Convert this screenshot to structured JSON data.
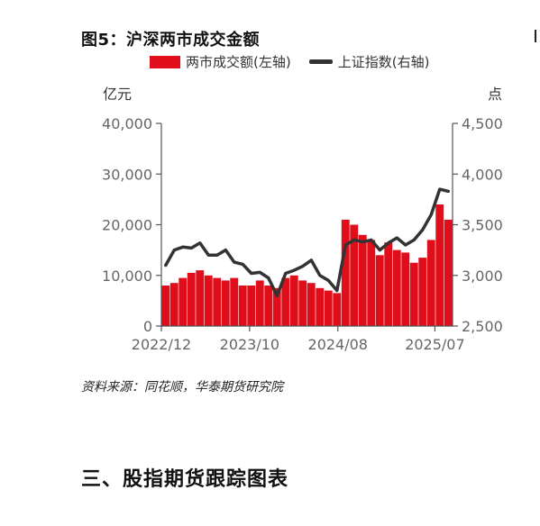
{
  "figure_title": "图5：沪深两市成交金额",
  "source_note": "资料来源：同花顺，华泰期货研究院",
  "section_heading": "三、股指期货跟踪图表",
  "legend": {
    "bar_label": "两市成交额(左轴)",
    "line_label": "上证指数(右轴)"
  },
  "units": {
    "left": "亿元",
    "right": "点"
  },
  "colors": {
    "bars": "#e00d1a",
    "line": "#333333",
    "axis": "#555555"
  },
  "chart_data": {
    "type": "bar",
    "x_ticks": [
      "2022/12",
      "2023/10",
      "2024/08",
      "2025/07"
    ],
    "x_range": [
      "2022-12",
      "2025-09"
    ],
    "y_left": {
      "label": "亿元",
      "min": 0,
      "max": 40000,
      "ticks": [
        "0",
        "10,000",
        "20,000",
        "30,000",
        "40,000"
      ]
    },
    "y_right": {
      "label": "点",
      "min": 2500,
      "max": 4500,
      "ticks": [
        "2,500",
        "3,000",
        "3,500",
        "4,000",
        "4,500"
      ]
    },
    "series": [
      {
        "name": "两市成交额(左轴)",
        "type": "bar",
        "axis": "left",
        "x": [
          "2022-12",
          "2023-01",
          "2023-02",
          "2023-03",
          "2023-04",
          "2023-05",
          "2023-06",
          "2023-07",
          "2023-08",
          "2023-09",
          "2023-10",
          "2023-11",
          "2023-12",
          "2024-01",
          "2024-02",
          "2024-03",
          "2024-04",
          "2024-05",
          "2024-06",
          "2024-07",
          "2024-08",
          "2024-09",
          "2024-10",
          "2024-11",
          "2024-12",
          "2025-01",
          "2025-02",
          "2025-03",
          "2025-04",
          "2025-05",
          "2025-06",
          "2025-07",
          "2025-08",
          "2025-09"
        ],
        "values": [
          8000,
          8500,
          9500,
          10500,
          11000,
          10000,
          9500,
          9000,
          9500,
          8000,
          8000,
          9000,
          8000,
          7500,
          9500,
          10000,
          9000,
          8500,
          7500,
          7000,
          6500,
          21000,
          20000,
          18000,
          17000,
          14000,
          16500,
          15000,
          14500,
          12500,
          13500,
          17000,
          24000,
          21000
        ]
      },
      {
        "name": "上证指数(右轴)",
        "type": "line",
        "axis": "right",
        "x": [
          "2022-12",
          "2023-01",
          "2023-02",
          "2023-03",
          "2023-04",
          "2023-05",
          "2023-06",
          "2023-07",
          "2023-08",
          "2023-09",
          "2023-10",
          "2023-11",
          "2023-12",
          "2024-01",
          "2024-02",
          "2024-03",
          "2024-04",
          "2024-05",
          "2024-06",
          "2024-07",
          "2024-08",
          "2024-09",
          "2024-10",
          "2024-11",
          "2024-12",
          "2025-01",
          "2025-02",
          "2025-03",
          "2025-04",
          "2025-05",
          "2025-06",
          "2025-07",
          "2025-08",
          "2025-09"
        ],
        "values": [
          3100,
          3250,
          3280,
          3270,
          3320,
          3200,
          3200,
          3250,
          3130,
          3110,
          3020,
          3030,
          2975,
          2800,
          3020,
          3050,
          3090,
          3150,
          3000,
          2950,
          2850,
          3300,
          3350,
          3330,
          3350,
          3250,
          3320,
          3370,
          3300,
          3350,
          3450,
          3600,
          3850,
          3830
        ]
      }
    ],
    "annotations": []
  }
}
